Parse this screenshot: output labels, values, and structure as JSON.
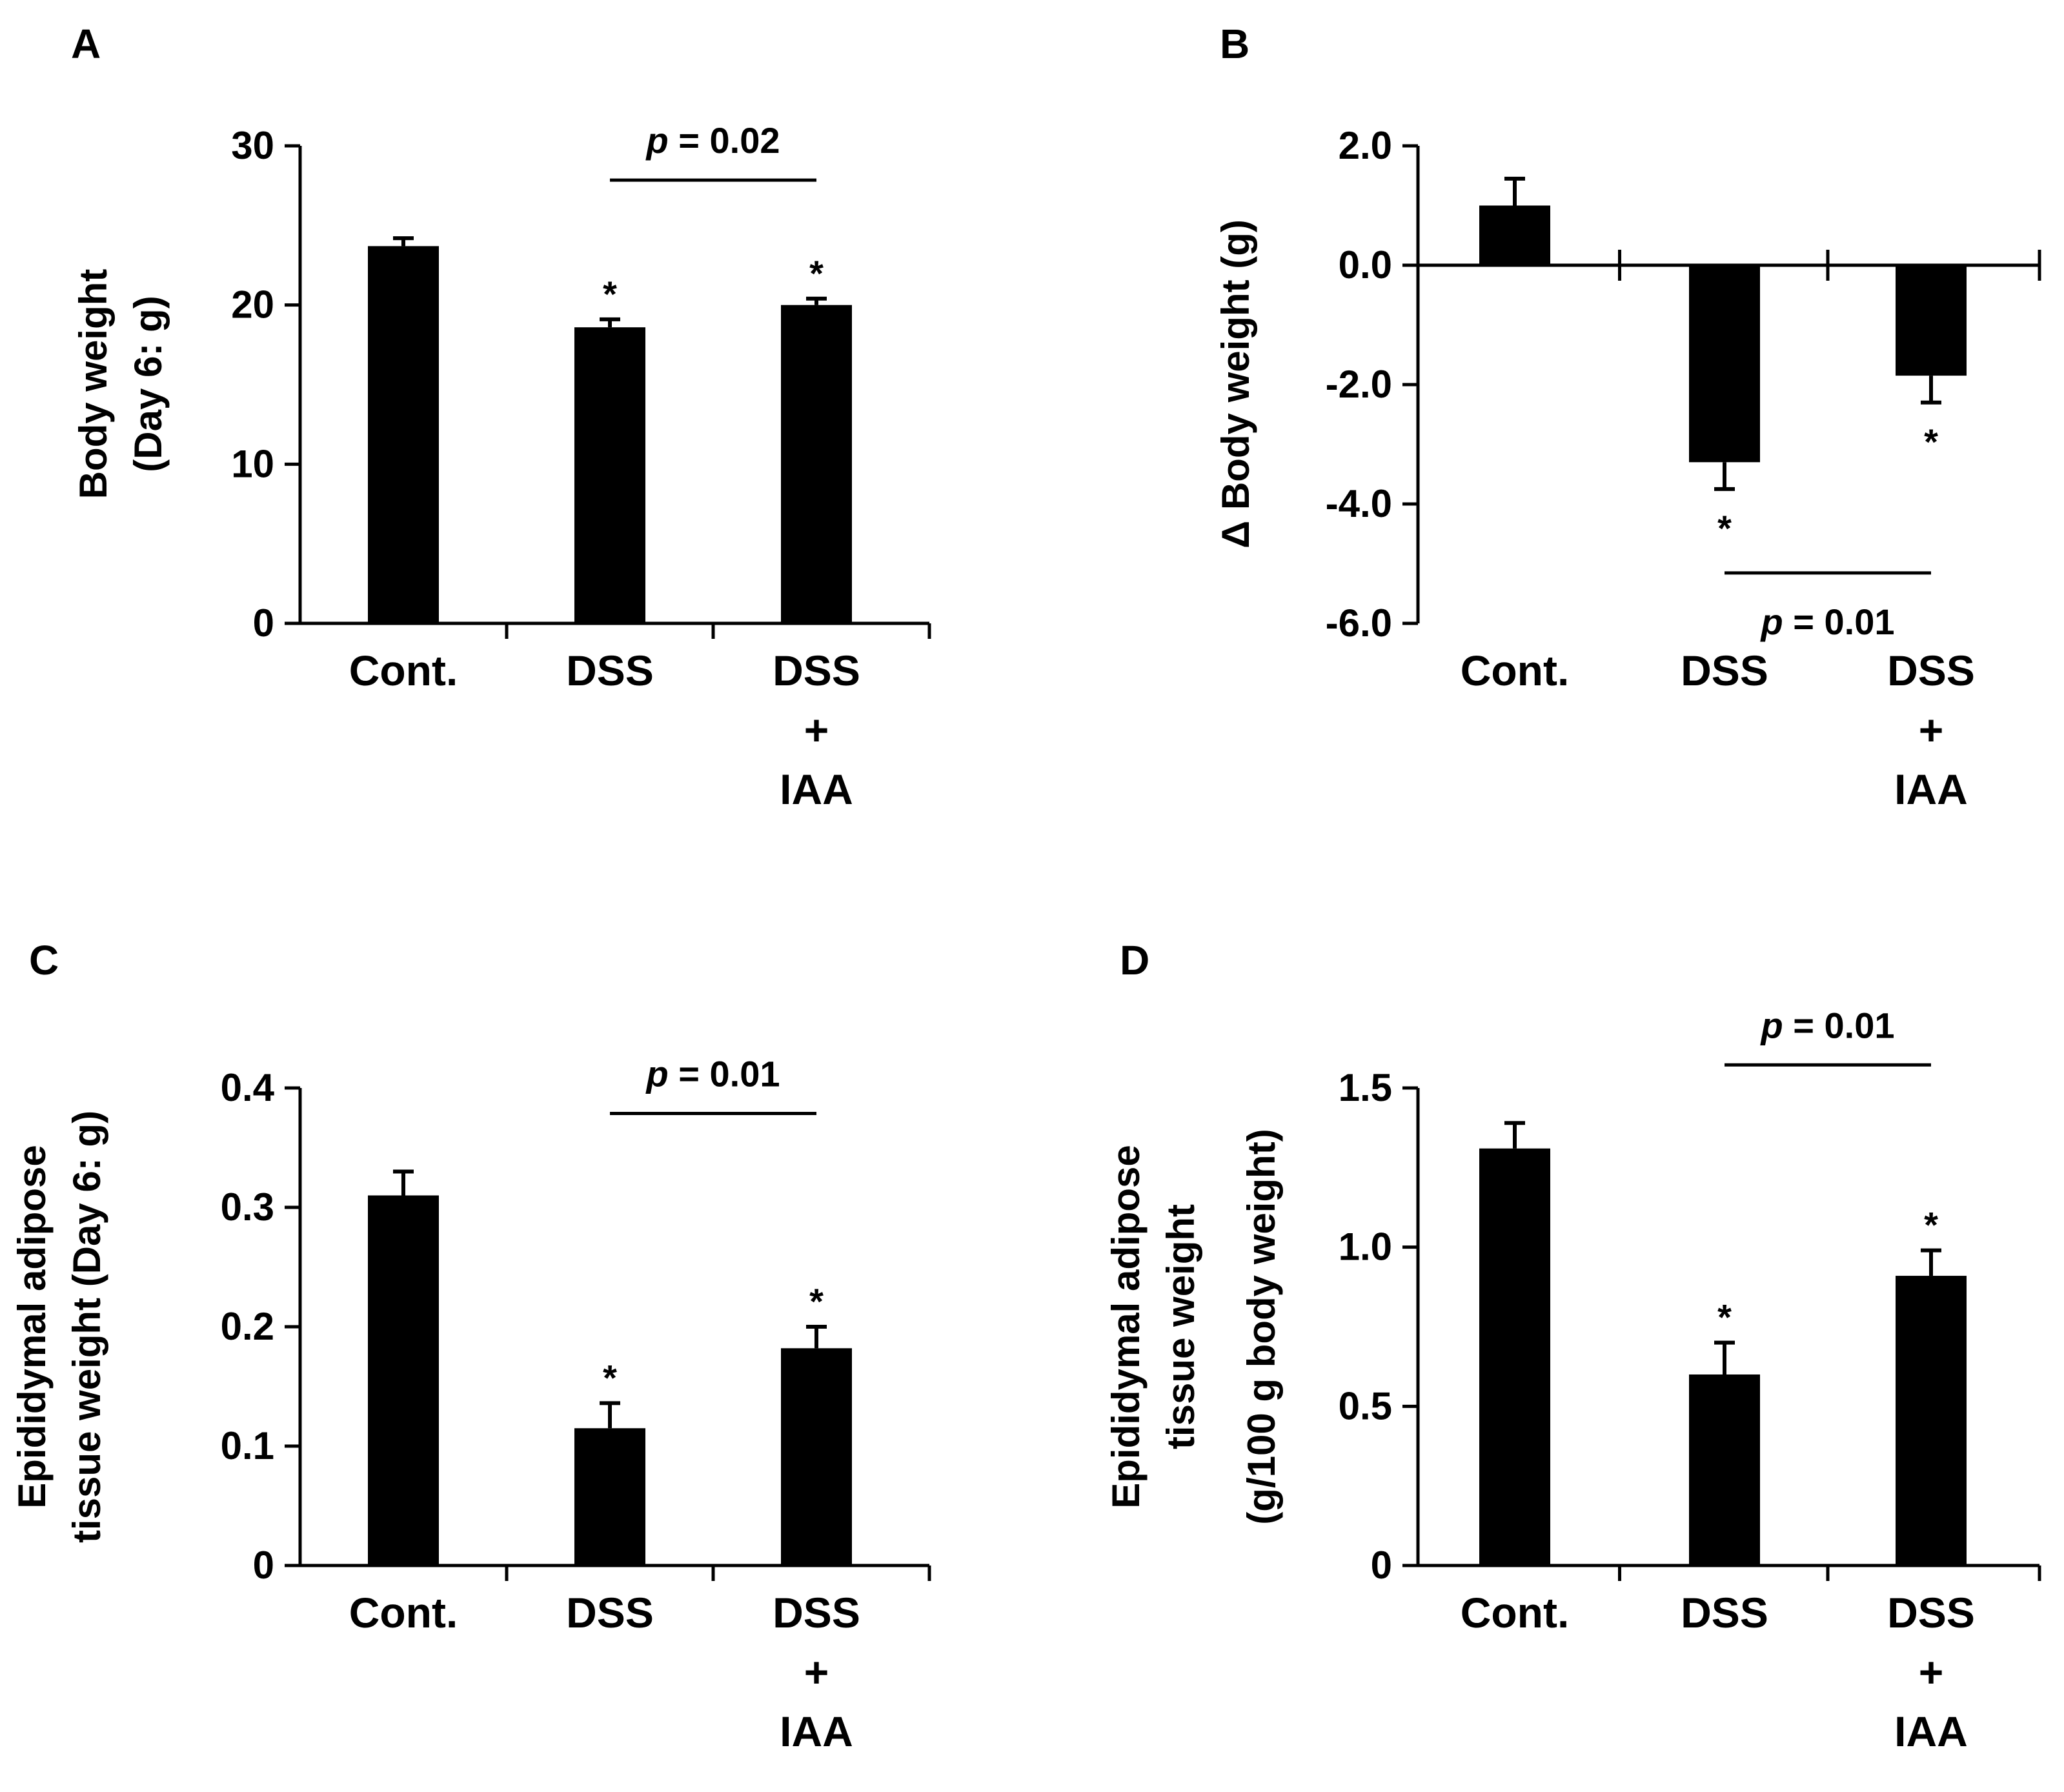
{
  "figure": {
    "panels": [
      "A",
      "B",
      "C",
      "D"
    ]
  },
  "colors": {
    "bar": "#000000",
    "axis": "#000000",
    "background": "#ffffff"
  },
  "chart_data": [
    {
      "panel": "A",
      "type": "bar",
      "categories": [
        "Cont.",
        "DSS",
        "DSS\n+\nIAA"
      ],
      "values": [
        23.7,
        18.6,
        20.0
      ],
      "errors": [
        0.5,
        0.5,
        0.4
      ],
      "ylabel": [
        "Body weight",
        "(Day 6: g)"
      ],
      "yticks": [
        "0",
        "10",
        "20",
        "30"
      ],
      "ytick_values": [
        0,
        10,
        20,
        30
      ],
      "ylim": [
        0,
        30
      ],
      "significance": [
        "",
        "*",
        "*"
      ],
      "comparison": {
        "from": 1,
        "to": 2,
        "label_p": "p",
        "label_rest": " = 0.02",
        "placement": "above"
      }
    },
    {
      "panel": "B",
      "type": "bar",
      "categories": [
        "Cont.",
        "DSS",
        "DSS\n+\nIAA"
      ],
      "values": [
        1.0,
        -3.3,
        -1.85
      ],
      "errors": [
        0.45,
        0.45,
        0.45
      ],
      "ylabel": [
        "Δ Body weight (g)"
      ],
      "yticks": [
        "2.0",
        "0.0",
        "-2.0",
        "-4.0",
        "-6.0"
      ],
      "ytick_values": [
        2,
        0,
        -2,
        -4,
        -6
      ],
      "ylim": [
        -6,
        2
      ],
      "significance": [
        "",
        "*",
        "*"
      ],
      "comparison": {
        "from": 1,
        "to": 2,
        "label_p": "p",
        "label_rest": " = 0.01",
        "placement": "below"
      }
    },
    {
      "panel": "C",
      "type": "bar",
      "categories": [
        "Cont.",
        "DSS",
        "DSS\n+\nIAA"
      ],
      "values": [
        0.31,
        0.115,
        0.182
      ],
      "errors": [
        0.02,
        0.021,
        0.018
      ],
      "ylabel": [
        "Epididymal adipose",
        "tissue weight (Day 6: g)"
      ],
      "yticks": [
        "0",
        "0.1",
        "0.2",
        "0.3",
        "0.4"
      ],
      "ytick_values": [
        0,
        0.1,
        0.2,
        0.3,
        0.4
      ],
      "ylim": [
        0,
        0.4
      ],
      "significance": [
        "",
        "*",
        "*"
      ],
      "comparison": {
        "from": 1,
        "to": 2,
        "label_p": "p",
        "label_rest": " = 0.01",
        "placement": "above"
      }
    },
    {
      "panel": "D",
      "type": "bar",
      "categories": [
        "Cont.",
        "DSS",
        "DSS\n+\nIAA"
      ],
      "values": [
        1.31,
        0.6,
        0.91
      ],
      "errors": [
        0.08,
        0.1,
        0.08
      ],
      "ylabel": [
        "Epididymal adipose",
        "tissue weight",
        "(g/100 g body weight)"
      ],
      "yticks": [
        "0",
        "0.5",
        "1.0",
        "1.5"
      ],
      "ytick_values": [
        0,
        0.5,
        1.0,
        1.5
      ],
      "ylim": [
        0,
        1.5
      ],
      "significance": [
        "",
        "*",
        "*"
      ],
      "comparison": {
        "from": 1,
        "to": 2,
        "label_p": "p",
        "label_rest": " = 0.01",
        "placement": "above"
      }
    }
  ]
}
